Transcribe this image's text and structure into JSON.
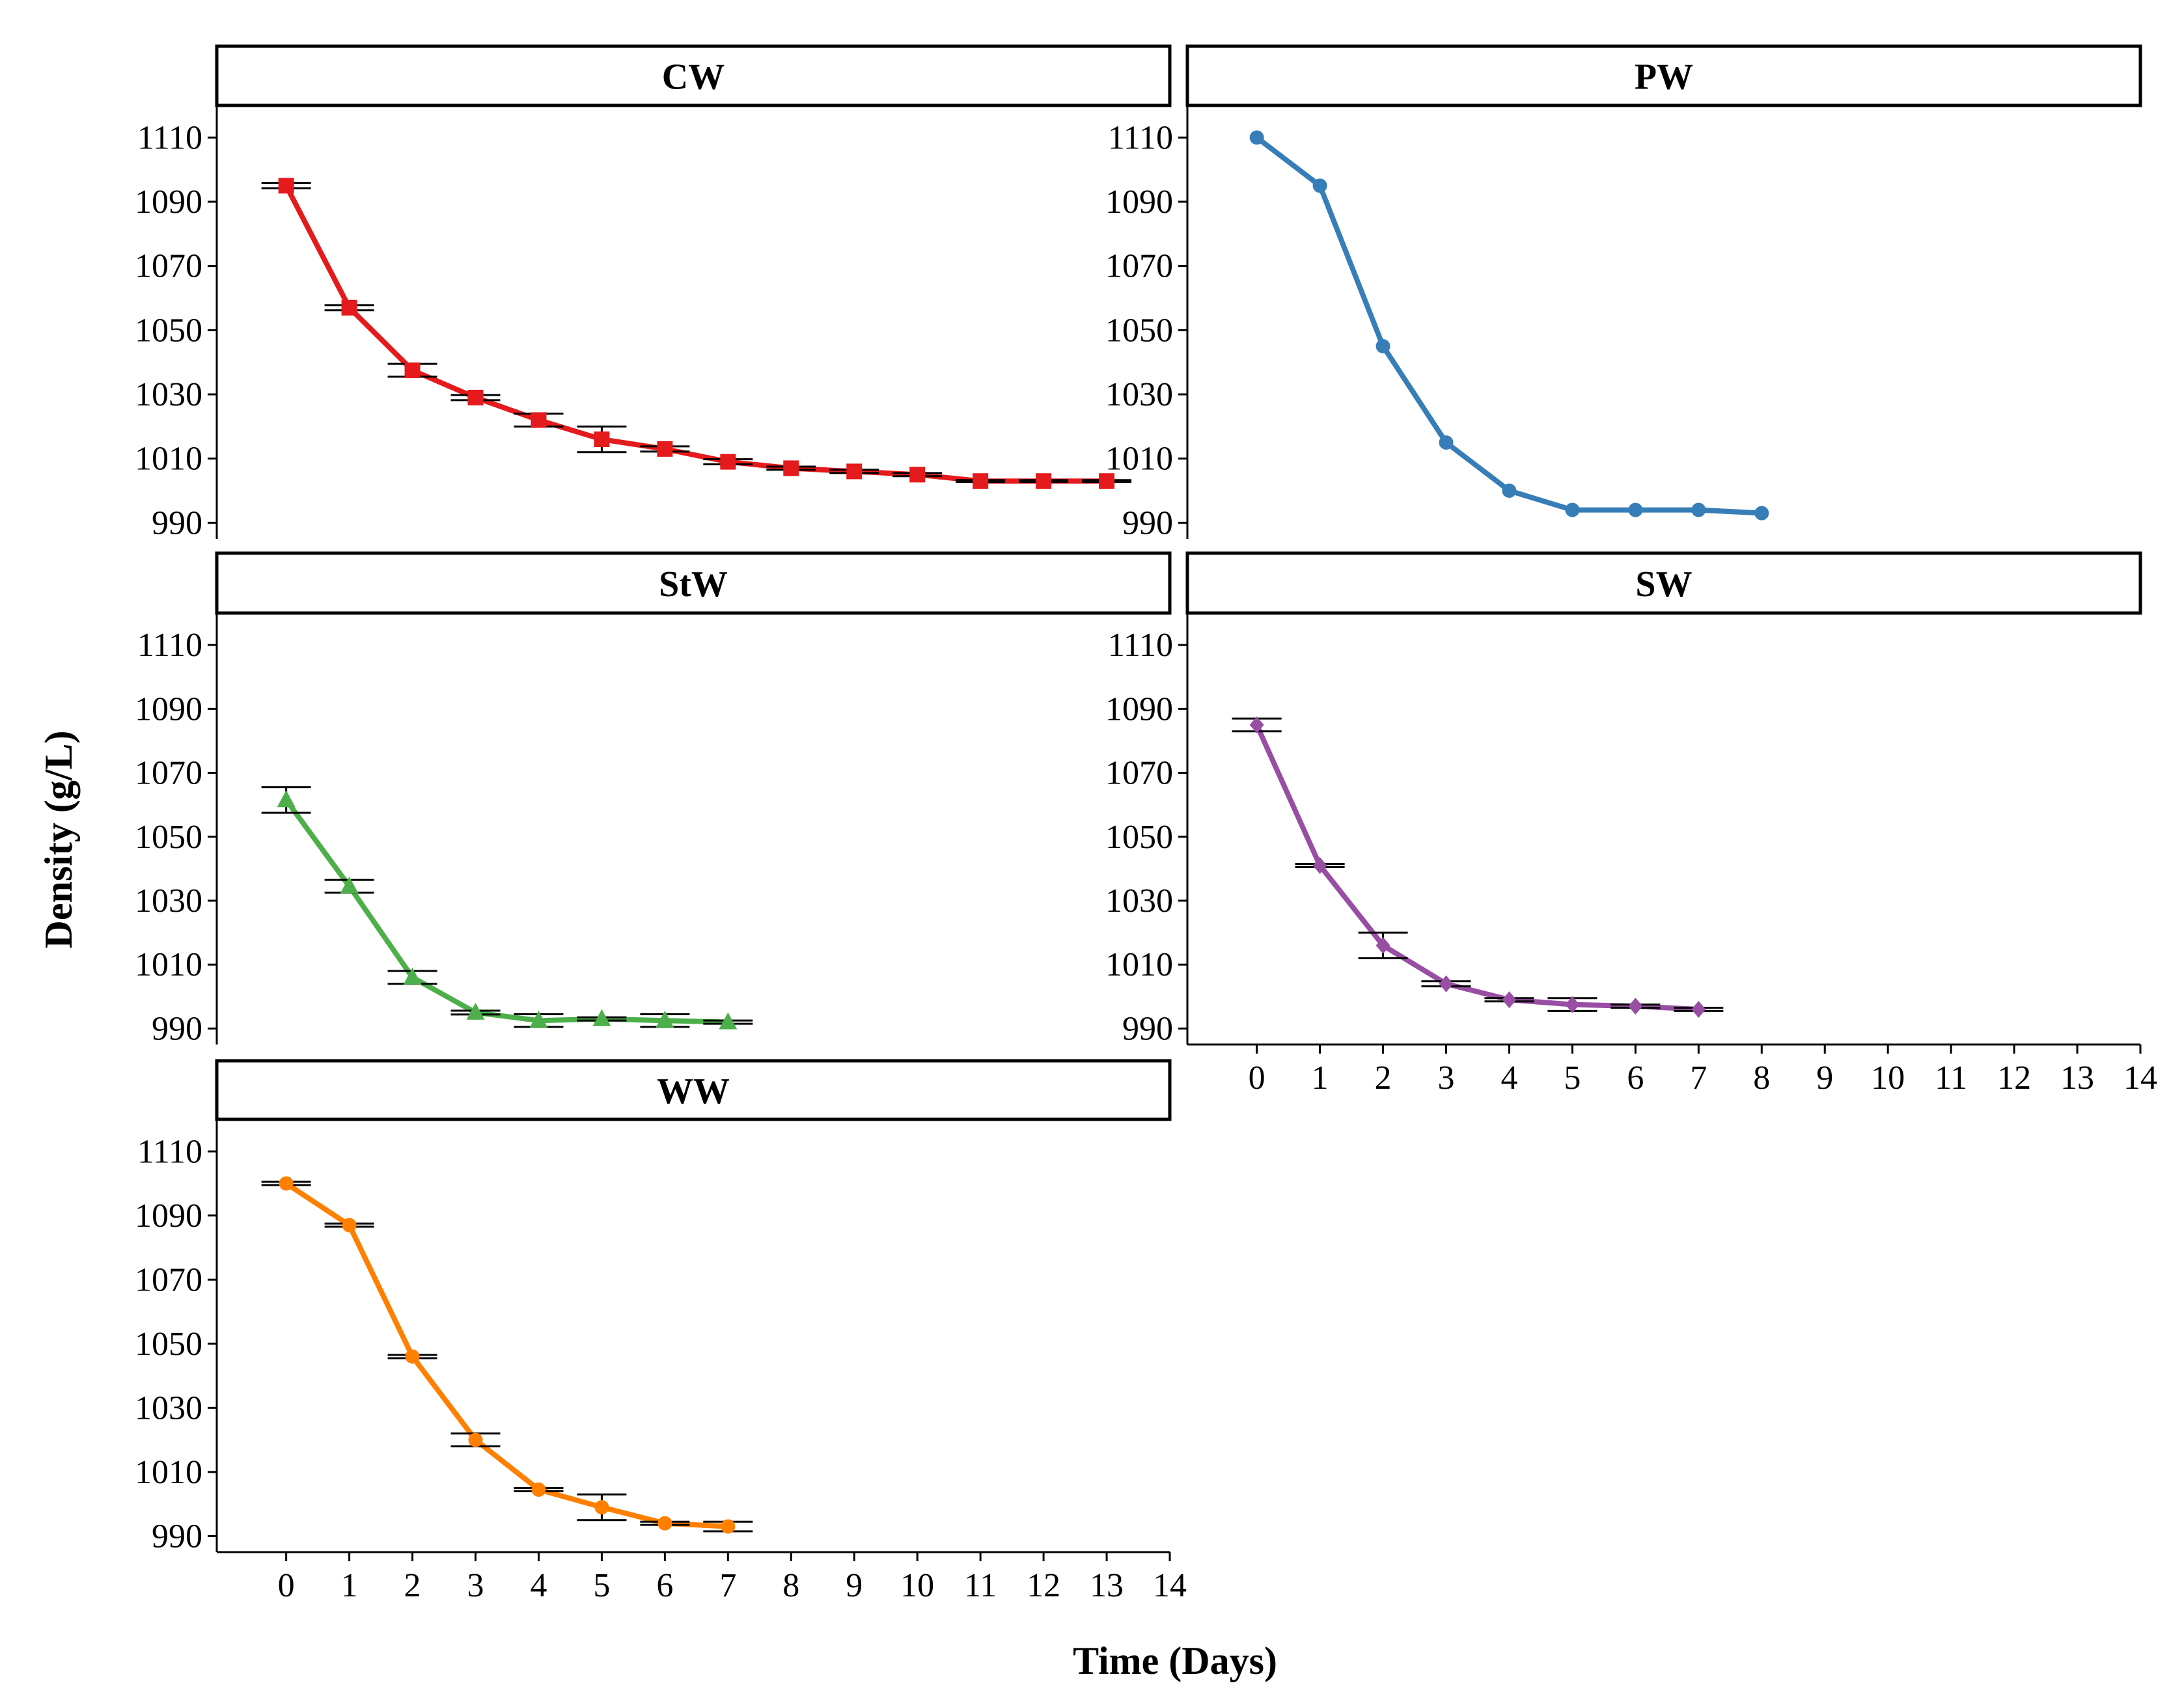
{
  "chart_data": {
    "type": "line",
    "layout": "facet-grid",
    "xlabel": "Time (Days)",
    "ylabel": "Density (g/L)",
    "xlim": [
      -1.1,
      14
    ],
    "ylim": [
      985,
      1120
    ],
    "x_ticks": [
      0,
      1,
      2,
      3,
      4,
      5,
      6,
      7,
      8,
      9,
      10,
      11,
      12,
      13,
      14
    ],
    "y_ticks": [
      990,
      1010,
      1030,
      1050,
      1070,
      1090,
      1110
    ],
    "panels": [
      {
        "name": "CW",
        "color": "#E41A1C",
        "marker": "square",
        "x": [
          0,
          1,
          2,
          3,
          4,
          5,
          6,
          7,
          8,
          9,
          10,
          11,
          12,
          13
        ],
        "y": [
          1095,
          1057,
          1037.5,
          1029,
          1022,
          1016,
          1013,
          1009,
          1007,
          1006,
          1005,
          1003,
          1003,
          1003
        ],
        "err": [
          0.8,
          0.8,
          2,
          0.8,
          2,
          4,
          0.8,
          0.8,
          0.5,
          0.5,
          0.5,
          0.3,
          0.3,
          0.3
        ]
      },
      {
        "name": "PW",
        "color": "#377EB8",
        "marker": "circle",
        "x": [
          0,
          1,
          2,
          3,
          4,
          5,
          6,
          7,
          8
        ],
        "y": [
          1110,
          1095,
          1045,
          1015,
          1000,
          994,
          994,
          994,
          993
        ],
        "err": [
          0,
          0,
          0,
          0,
          0,
          0,
          0,
          0,
          0
        ]
      },
      {
        "name": "StW",
        "color": "#4DAF4A",
        "marker": "triangle",
        "x": [
          0,
          1,
          2,
          3,
          4,
          5,
          6,
          7
        ],
        "y": [
          1061.5,
          1034.5,
          1006,
          995,
          992.5,
          993,
          992.5,
          992
        ],
        "err": [
          4,
          2,
          2,
          0.6,
          2,
          0.5,
          2,
          0.5
        ]
      },
      {
        "name": "SW",
        "color": "#984EA3",
        "marker": "diamond",
        "x": [
          0,
          1,
          2,
          3,
          4,
          5,
          6,
          7
        ],
        "y": [
          1085,
          1041,
          1016,
          1004,
          999,
          997.5,
          997,
          996
        ],
        "err": [
          2,
          0.5,
          4,
          0.8,
          0.5,
          2,
          0.5,
          0.5
        ]
      },
      {
        "name": "WW",
        "color": "#FF7F00",
        "marker": "circle",
        "x": [
          0,
          1,
          2,
          3,
          4,
          5,
          6,
          7
        ],
        "y": [
          1100,
          1087,
          1046,
          1020,
          1004.5,
          999,
          994,
          993
        ],
        "err": [
          0.5,
          0.5,
          0.5,
          2,
          0.5,
          4,
          0.5,
          1.5
        ]
      }
    ]
  }
}
